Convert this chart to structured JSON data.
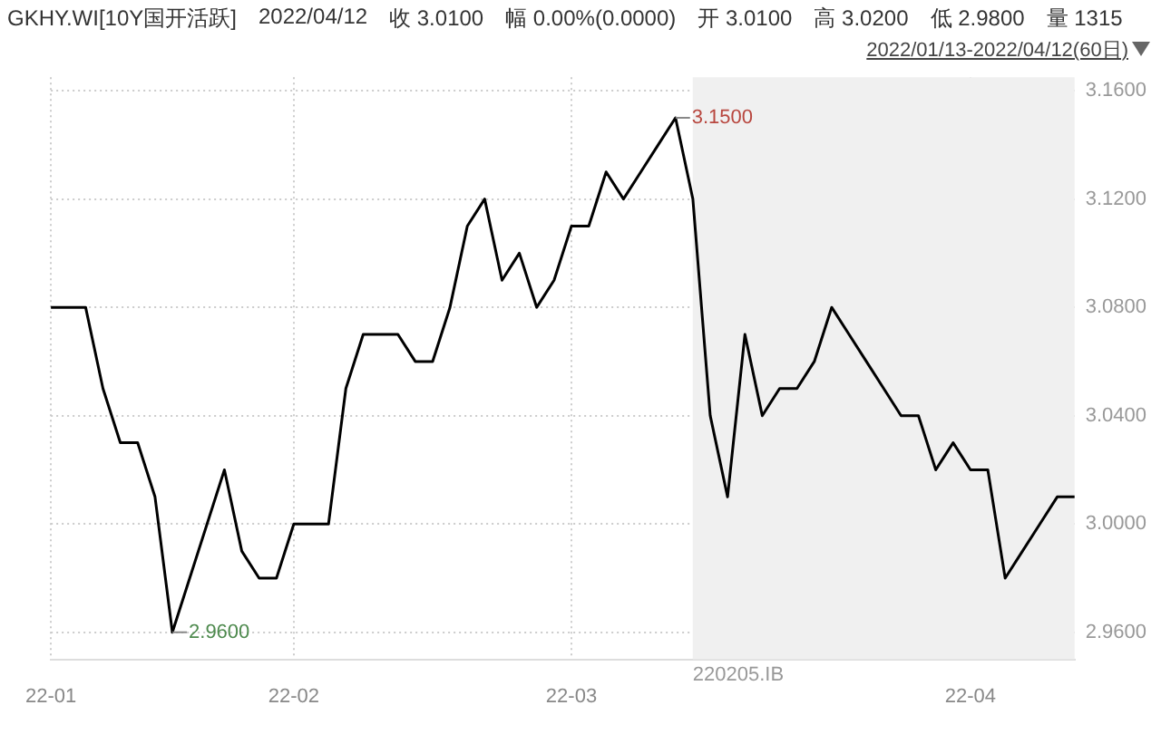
{
  "chart_data": {
    "type": "line",
    "title": "GKHY.WI[10Y国开活跃]",
    "annotations": [
      "2022/04/12",
      "收 3.0100",
      "幅 0.00%(0.0000)",
      "开 3.0100",
      "高 3.0200",
      "低 2.9800",
      "量 1315",
      "2022/01/13-2022/04/12(60日)",
      "3.1500",
      "2.9600",
      "220205.IB"
    ],
    "categories": [
      "22-01",
      null,
      null,
      null,
      null,
      null,
      null,
      null,
      null,
      null,
      null,
      null,
      null,
      null,
      "22-02",
      null,
      null,
      null,
      null,
      null,
      null,
      null,
      null,
      null,
      null,
      null,
      null,
      null,
      null,
      null,
      "22-03",
      null,
      null,
      null,
      null,
      null,
      null,
      null,
      null,
      null,
      null,
      null,
      null,
      null,
      null,
      null,
      null,
      null,
      null,
      null,
      null,
      null,
      null,
      "22-04",
      null,
      null,
      null,
      null,
      null,
      null
    ],
    "series": [
      {
        "color": "#000000",
        "values": [
          3.08,
          3.08,
          3.08,
          3.05,
          3.03,
          3.03,
          3.01,
          2.96,
          2.98,
          3.0,
          3.02,
          2.99,
          2.98,
          2.98,
          3.0,
          3.0,
          3.0,
          3.05,
          3.07,
          3.07,
          3.07,
          3.06,
          3.06,
          3.08,
          3.11,
          3.12,
          3.09,
          3.1,
          3.08,
          3.09,
          3.11,
          3.11,
          3.13,
          3.12,
          3.13,
          3.14,
          3.15,
          3.12,
          3.04,
          3.01,
          3.07,
          3.04,
          3.05,
          3.05,
          3.06,
          3.08,
          3.07,
          3.06,
          3.05,
          3.04,
          3.04,
          3.02,
          3.03,
          3.02,
          3.02,
          2.98,
          2.99,
          3.0,
          3.01,
          3.01
        ]
      }
    ],
    "ylim": [
      2.95,
      3.165
    ],
    "yticks": [
      {
        "value": 2.96,
        "label": "2.9600"
      },
      {
        "value": 3.0,
        "label": "3.0000"
      },
      {
        "value": 3.04,
        "label": "3.0400"
      },
      {
        "value": 3.08,
        "label": "3.0800"
      },
      {
        "value": 3.12,
        "label": "3.1200"
      },
      {
        "value": 3.16,
        "label": "3.1600"
      }
    ],
    "grid": true,
    "legend": false,
    "marker": "none",
    "line_style": "solid"
  }
}
